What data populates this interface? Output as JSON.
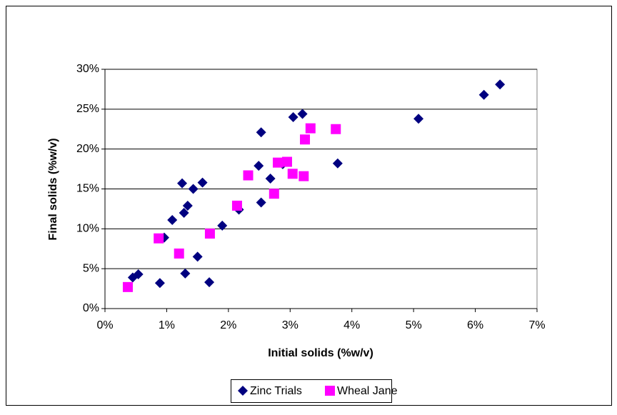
{
  "chart_data": {
    "type": "scatter",
    "x_label": "Initial solids (%w/v)",
    "y_label": "Final solids (%w/v)",
    "xlim": [
      0,
      7
    ],
    "ylim": [
      0,
      30
    ],
    "xticks": [
      {
        "value": 0,
        "label": "0%"
      },
      {
        "value": 1,
        "label": "1%"
      },
      {
        "value": 2,
        "label": "2%"
      },
      {
        "value": 3,
        "label": "3%"
      },
      {
        "value": 4,
        "label": "4%"
      },
      {
        "value": 5,
        "label": "5%"
      },
      {
        "value": 6,
        "label": "6%"
      },
      {
        "value": 7,
        "label": "7%"
      }
    ],
    "yticks": [
      {
        "value": 0,
        "label": "0%"
      },
      {
        "value": 5,
        "label": "5%"
      },
      {
        "value": 10,
        "label": "10%"
      },
      {
        "value": 15,
        "label": "15%"
      },
      {
        "value": 20,
        "label": "20%"
      },
      {
        "value": 25,
        "label": "25%"
      },
      {
        "value": 30,
        "label": "30%"
      }
    ],
    "grid": true,
    "legend": "bottom",
    "series": [
      {
        "name": "Zinc Trials",
        "color": "#000080",
        "marker": "diamond",
        "x": [
          0.45,
          0.54,
          0.89,
          0.96,
          1.09,
          1.25,
          1.28,
          1.34,
          1.3,
          1.43,
          1.5,
          1.58,
          1.69,
          1.9,
          2.17,
          2.49,
          2.53,
          2.53,
          2.68,
          2.88,
          3.05,
          3.2,
          3.77,
          5.08,
          6.14,
          6.4
        ],
        "values": [
          3.9,
          4.3,
          3.2,
          8.9,
          11.1,
          15.7,
          12.0,
          12.9,
          4.4,
          15.0,
          6.5,
          15.8,
          3.3,
          10.4,
          12.4,
          17.9,
          13.3,
          22.1,
          16.3,
          18.1,
          24.0,
          24.4,
          18.2,
          23.8,
          26.8,
          28.1
        ]
      },
      {
        "name": "Wheal Jane",
        "color": "#FF00FF",
        "marker": "square",
        "x": [
          0.37,
          0.87,
          1.2,
          1.7,
          2.14,
          2.32,
          2.74,
          2.8,
          2.95,
          3.04,
          3.22,
          3.24,
          3.33,
          3.74
        ],
        "values": [
          2.7,
          8.8,
          6.9,
          9.4,
          12.9,
          16.7,
          14.4,
          18.3,
          18.4,
          16.9,
          16.6,
          21.2,
          22.6,
          22.5
        ]
      }
    ]
  }
}
